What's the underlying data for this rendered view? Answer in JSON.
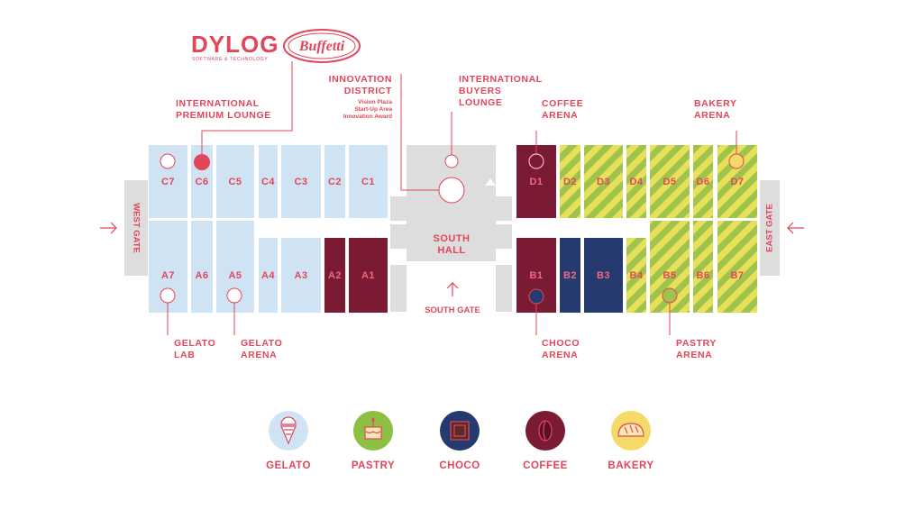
{
  "logos": {
    "dylog": "DYLOG",
    "dylog_sub": "SOFTWARE & TECHNOLOGY",
    "buffetti": "Buffetti"
  },
  "gates": {
    "west": "WEST GATE",
    "east": "EAST GATE",
    "south": "SOUTH GATE",
    "south_hall": [
      "SOUTH",
      "HALL"
    ]
  },
  "halls": [
    {
      "id": "C7",
      "category": "gelato"
    },
    {
      "id": "C6",
      "category": "gelato"
    },
    {
      "id": "C5",
      "category": "gelato"
    },
    {
      "id": "C4",
      "category": "gelato"
    },
    {
      "id": "C3",
      "category": "gelato"
    },
    {
      "id": "C2",
      "category": "gelato"
    },
    {
      "id": "C1",
      "category": "gelato"
    },
    {
      "id": "A7",
      "category": "gelato"
    },
    {
      "id": "A6",
      "category": "gelato"
    },
    {
      "id": "A5",
      "category": "gelato"
    },
    {
      "id": "A4",
      "category": "gelato"
    },
    {
      "id": "A3",
      "category": "gelato"
    },
    {
      "id": "A2",
      "category": "coffee"
    },
    {
      "id": "A1",
      "category": "coffee"
    },
    {
      "id": "D1",
      "category": "coffee"
    },
    {
      "id": "D2",
      "category": "pastry-bakery"
    },
    {
      "id": "D3",
      "category": "pastry-bakery"
    },
    {
      "id": "D4",
      "category": "pastry-bakery"
    },
    {
      "id": "D5",
      "category": "pastry-bakery"
    },
    {
      "id": "D6",
      "category": "pastry-bakery"
    },
    {
      "id": "D7",
      "category": "pastry-bakery"
    },
    {
      "id": "B1",
      "category": "coffee"
    },
    {
      "id": "B2",
      "category": "choco"
    },
    {
      "id": "B3",
      "category": "choco"
    },
    {
      "id": "B4",
      "category": "pastry-bakery"
    },
    {
      "id": "B5",
      "category": "pastry-bakery"
    },
    {
      "id": "B6",
      "category": "pastry-bakery"
    },
    {
      "id": "B7",
      "category": "pastry-bakery"
    }
  ],
  "annotations": {
    "premium_lounge": [
      "INTERNATIONAL",
      "PREMIUM LOUNGE"
    ],
    "innovation_district": [
      "INNOVATION",
      "DISTRICT"
    ],
    "innovation_sub": [
      "Vision Plaza",
      "Start-Up Area",
      "Innovation Award"
    ],
    "buyers_lounge": [
      "INTERNATIONAL",
      "BUYERS",
      "LOUNGE"
    ],
    "coffee_arena": [
      "COFFEE",
      "ARENA"
    ],
    "bakery_arena": [
      "BAKERY",
      "ARENA"
    ],
    "gelato_lab": [
      "GELATO",
      "LAB"
    ],
    "gelato_arena": [
      "GELATO",
      "ARENA"
    ],
    "choco_arena": [
      "CHOCO",
      "ARENA"
    ],
    "pastry_arena": [
      "PASTRY",
      "ARENA"
    ]
  },
  "legend": [
    {
      "label": "GELATO",
      "icon": "ice-cream-cone-icon",
      "color": "#cfe3f3"
    },
    {
      "label": "PASTRY",
      "icon": "cake-icon",
      "color": "#8dbf44"
    },
    {
      "label": "CHOCO",
      "icon": "chocolate-icon",
      "color": "#253a6e"
    },
    {
      "label": "COFFEE",
      "icon": "coffee-bean-icon",
      "color": "#7a1a33"
    },
    {
      "label": "BAKERY",
      "icon": "bread-icon",
      "color": "#f5da6a"
    }
  ],
  "colors": {
    "accent": "#e2465a",
    "gelato": "#cfe3f3",
    "coffee": "#7a1a33",
    "choco": "#253a6e",
    "stripe_yellow": "#e8e45a",
    "stripe_green": "#9cc24a",
    "gray": "#dddddd",
    "white": "#ffffff"
  }
}
